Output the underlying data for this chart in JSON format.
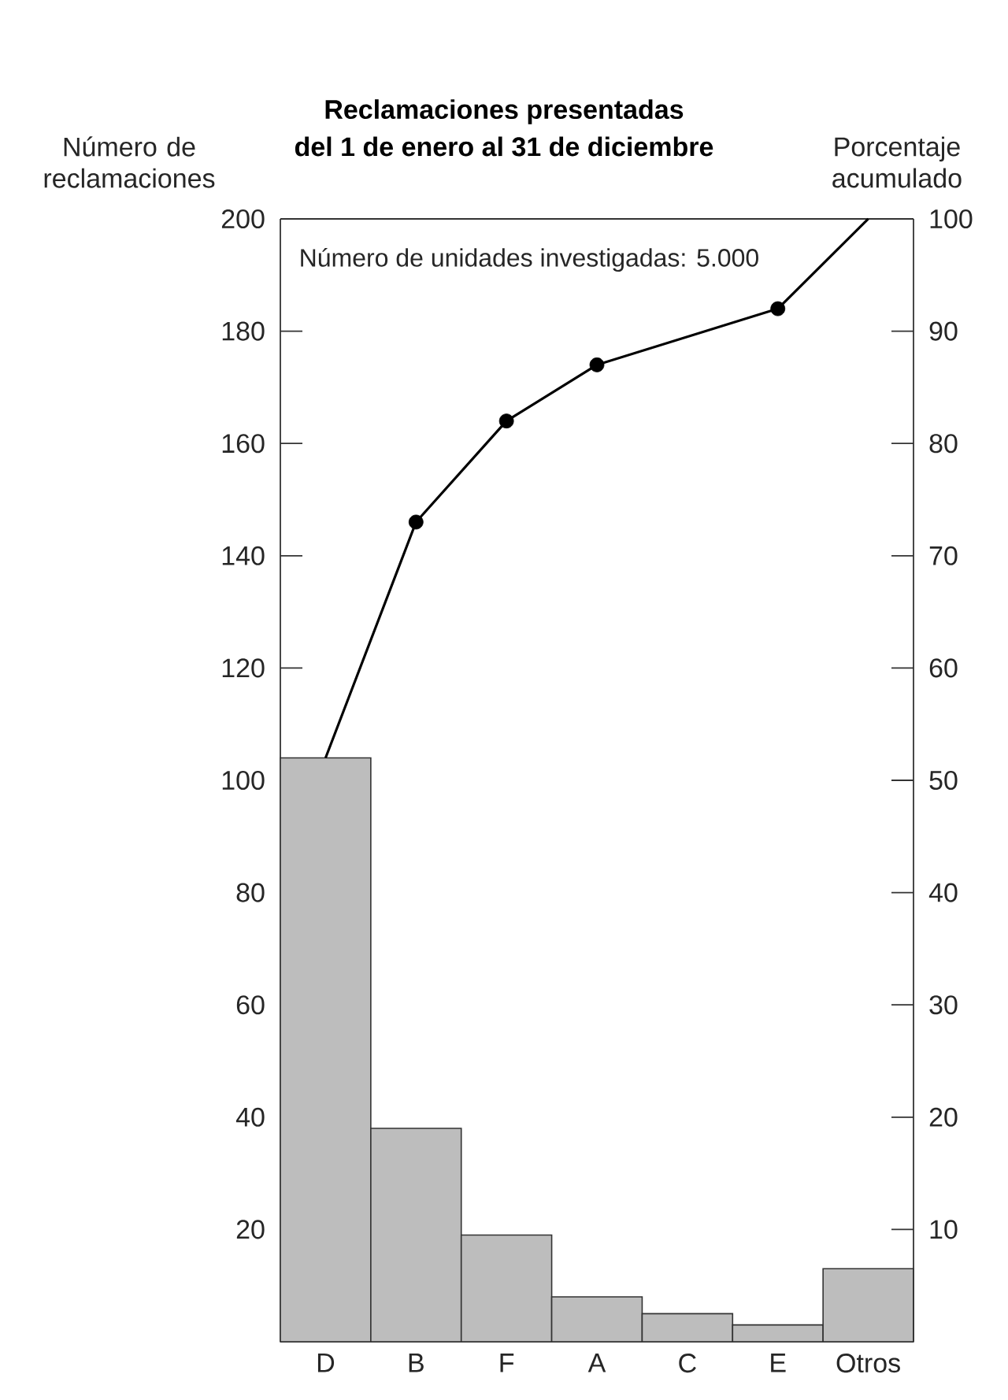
{
  "chart_data": {
    "type": "bar",
    "title": "Reclamaciones presentadas",
    "subtitle": "del 1 de enero al 31 de diciembre",
    "ylabel": "Número de reclamaciones",
    "y2label": "Porcentaje acumulado",
    "annotations": [
      "Número de unidades investigadas: 5.000"
    ],
    "categories": [
      "D",
      "B",
      "F",
      "A",
      "C",
      "E",
      "Otros"
    ],
    "series": [
      {
        "color": "#bdbdbd",
        "values": [
          104,
          38,
          19,
          8,
          5,
          3,
          13
        ]
      },
      {
        "type": "line",
        "axis": "y2",
        "color": "#000000",
        "marker": "none",
        "values": [
          52,
          73,
          82,
          87,
          null,
          92,
          100
        ]
      },
      {
        "type": "scatter",
        "axis": "y2",
        "color": "#000000",
        "marker": "circle",
        "values": [
          null,
          73,
          82,
          87,
          null,
          92,
          null
        ]
      }
    ],
    "ylim": [
      0,
      200
    ],
    "yticks": [
      20,
      40,
      60,
      80,
      100,
      120,
      140,
      160,
      180,
      200
    ],
    "y2lim": [
      0,
      100
    ],
    "y2ticks": [
      10,
      20,
      30,
      40,
      50,
      60,
      70,
      80,
      90,
      100
    ],
    "grid": false
  }
}
